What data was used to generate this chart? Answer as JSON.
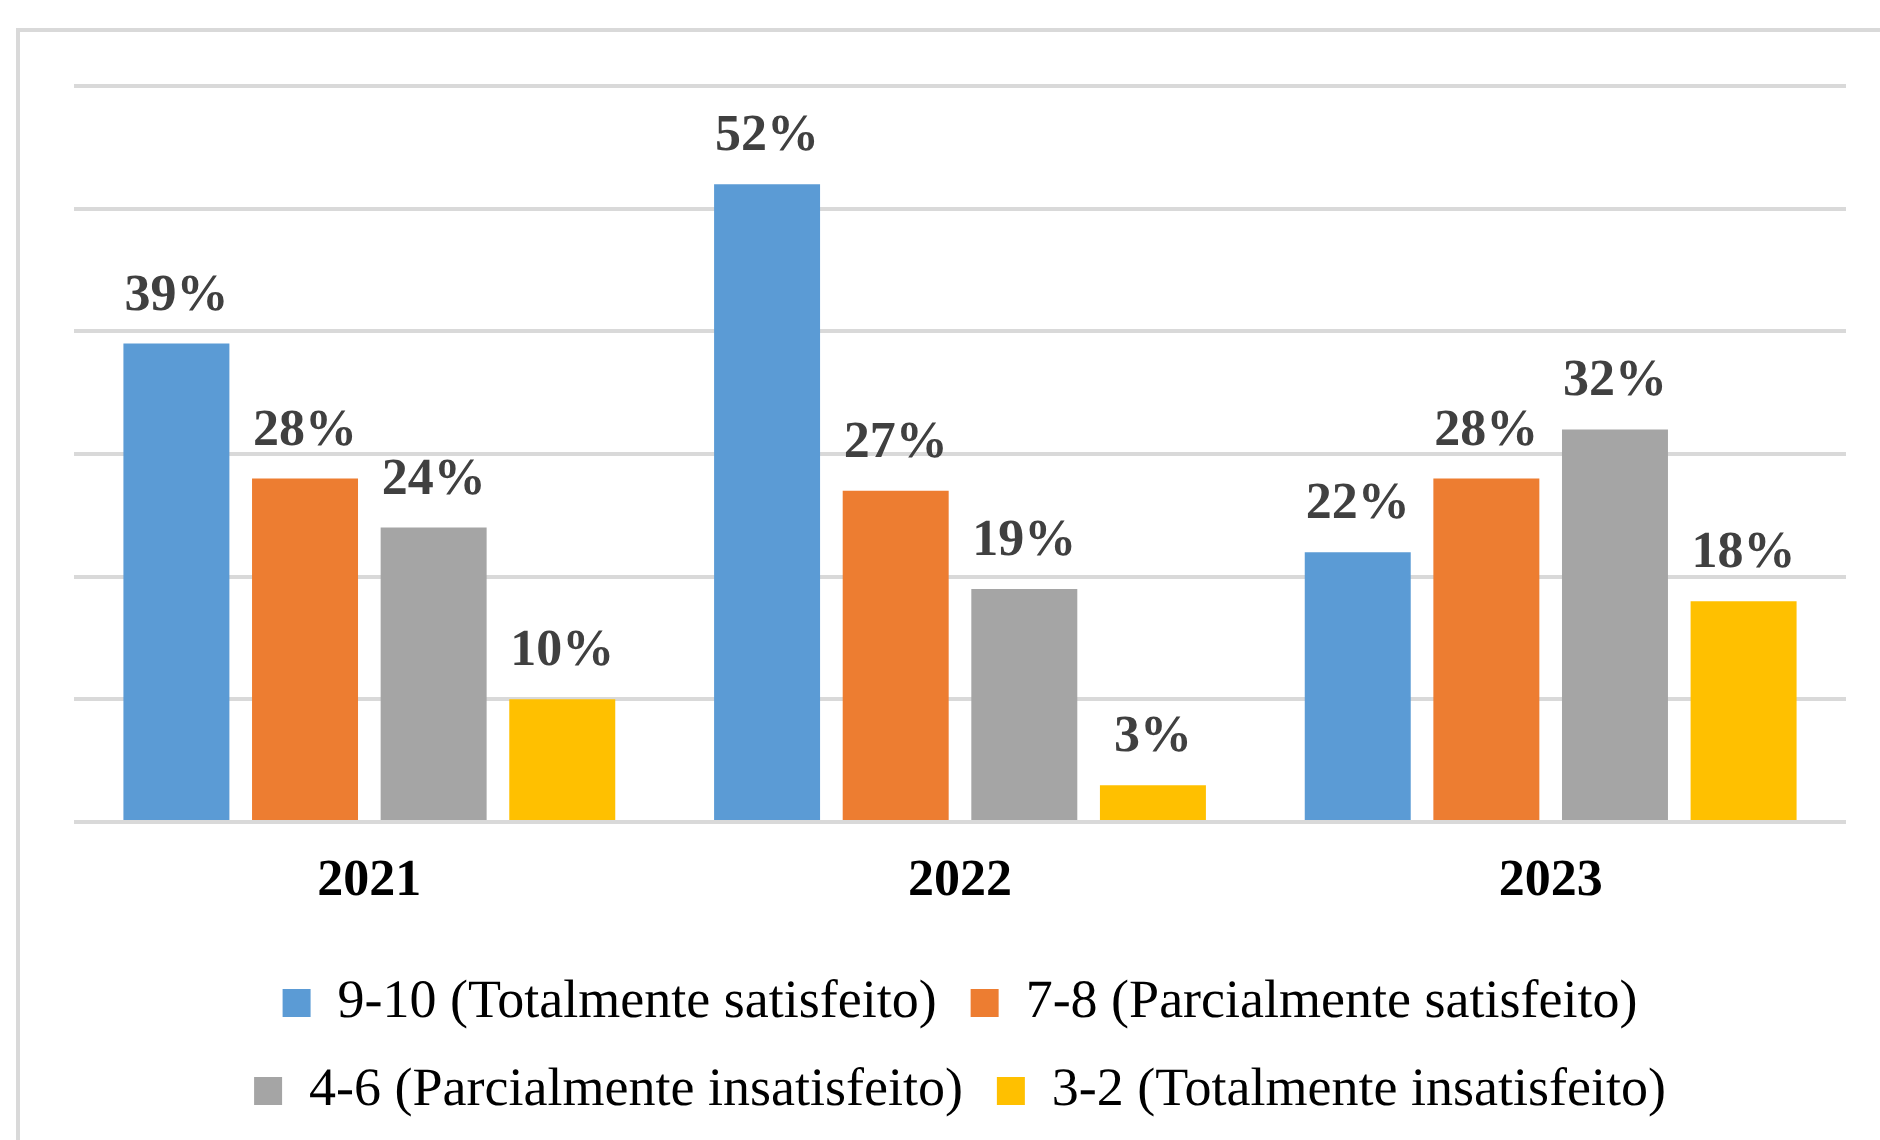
{
  "chart_data": {
    "type": "bar",
    "categories": [
      "2021",
      "2022",
      "2023"
    ],
    "series": [
      {
        "name": "9-10 (Totalmente satisfeito)",
        "color": "#5b9bd5",
        "values": [
          39,
          52,
          22
        ],
        "value_labels": [
          "39%",
          "52%",
          "22%"
        ]
      },
      {
        "name": "7-8 (Parcialmente satisfeito)",
        "color": "#ed7d31",
        "values": [
          28,
          27,
          28
        ],
        "value_labels": [
          "28%",
          "27%",
          "28%"
        ]
      },
      {
        "name": "4-6 (Parcialmente insatisfeito)",
        "color": "#a5a5a5",
        "values": [
          24,
          19,
          32
        ],
        "value_labels": [
          "24%",
          "19%",
          "32%"
        ]
      },
      {
        "name": "3-2 (Totalmente insatisfeito)",
        "color": "#ffc000",
        "values": [
          10,
          3,
          18
        ],
        "value_labels": [
          "10%",
          "3%",
          "18%"
        ]
      }
    ],
    "ylim": [
      0,
      60
    ],
    "yticks": [
      {
        "value": 0,
        "label": null
      },
      {
        "value": 10,
        "label": null
      },
      {
        "value": 20,
        "label": null
      },
      {
        "value": 30,
        "label": null
      },
      {
        "value": 40,
        "label": null
      },
      {
        "value": 50,
        "label": null
      },
      {
        "value": 60,
        "label": null
      }
    ],
    "grid": "y",
    "legend": "bottom",
    "tick_labels": "x"
  }
}
